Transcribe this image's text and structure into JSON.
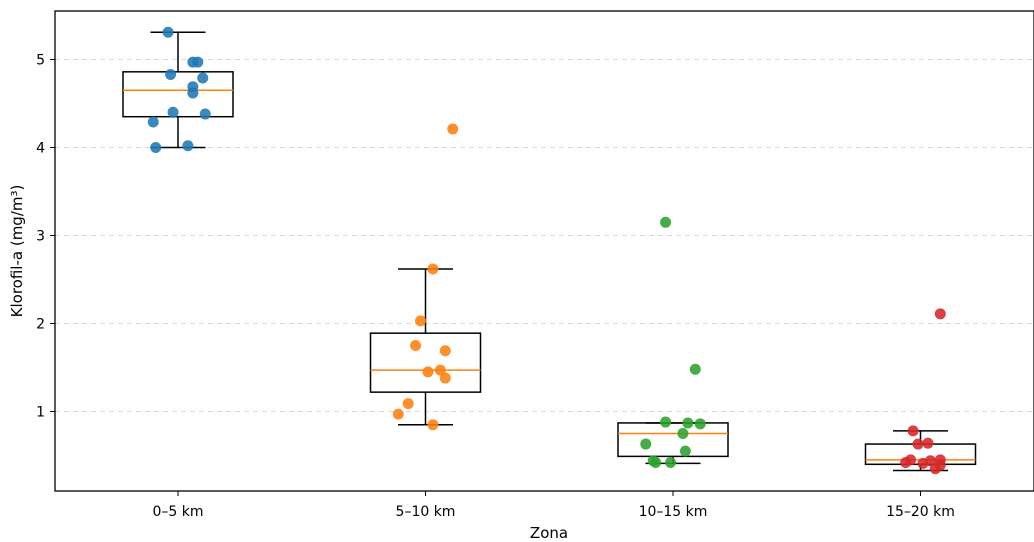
{
  "chart_data": {
    "type": "box",
    "xlabel": "Zona",
    "ylabel": "Klorofil-a (mg/m³)",
    "yticks": [
      1,
      2,
      3,
      4,
      5
    ],
    "ylim": [
      0.12,
      5.55
    ],
    "grid": "horizontal dashed",
    "categories": [
      "0–5 km",
      "5–10 km",
      "10–15 km",
      "15–20 km"
    ],
    "series": [
      {
        "category": "0–5 km",
        "color": "#1f77b4",
        "box": {
          "whisker_low": 4.0,
          "q1": 4.35,
          "median": 4.65,
          "q3": 4.86,
          "whisker_high": 5.31
        },
        "points": [
          [
            0.96,
            5.31
          ],
          [
            0.97,
            4.83
          ],
          [
            1.06,
            4.97
          ],
          [
            1.08,
            4.97
          ],
          [
            1.06,
            4.69
          ],
          [
            1.06,
            4.62
          ],
          [
            1.1,
            4.79
          ],
          [
            1.11,
            4.38
          ],
          [
            0.98,
            4.4
          ],
          [
            0.9,
            4.29
          ],
          [
            0.91,
            4.0
          ],
          [
            1.04,
            4.02
          ]
        ]
      },
      {
        "category": "5–10 km",
        "color": "#ff7f0e",
        "box": {
          "whisker_low": 0.85,
          "q1": 1.22,
          "median": 1.47,
          "q3": 1.89,
          "whisker_high": 2.62
        },
        "points": [
          [
            2.11,
            4.21
          ],
          [
            2.03,
            2.62
          ],
          [
            1.98,
            2.03
          ],
          [
            1.96,
            1.75
          ],
          [
            2.08,
            1.69
          ],
          [
            2.01,
            1.45
          ],
          [
            2.06,
            1.47
          ],
          [
            2.08,
            1.38
          ],
          [
            1.93,
            1.09
          ],
          [
            1.89,
            0.97
          ],
          [
            2.03,
            0.85
          ]
        ]
      },
      {
        "category": "10–15 km",
        "color": "#2ca02c",
        "box": {
          "whisker_low": 0.41,
          "q1": 0.49,
          "median": 0.75,
          "q3": 0.87,
          "whisker_high": 0.87
        },
        "points": [
          [
            2.97,
            3.15
          ],
          [
            3.09,
            1.48
          ],
          [
            2.97,
            0.88
          ],
          [
            3.06,
            0.87
          ],
          [
            3.11,
            0.86
          ],
          [
            3.04,
            0.75
          ],
          [
            2.89,
            0.63
          ],
          [
            3.05,
            0.55
          ],
          [
            2.92,
            0.44
          ],
          [
            2.93,
            0.42
          ],
          [
            2.99,
            0.42
          ]
        ]
      },
      {
        "category": "15–20 km",
        "color": "#d62728",
        "box": {
          "whisker_low": 0.33,
          "q1": 0.4,
          "median": 0.45,
          "q3": 0.63,
          "whisker_high": 0.78
        },
        "points": [
          [
            4.08,
            2.11
          ],
          [
            3.97,
            0.78
          ],
          [
            3.99,
            0.63
          ],
          [
            4.03,
            0.64
          ],
          [
            3.94,
            0.42
          ],
          [
            3.96,
            0.45
          ],
          [
            4.01,
            0.41
          ],
          [
            4.04,
            0.44
          ],
          [
            4.08,
            0.45
          ],
          [
            4.08,
            0.39
          ],
          [
            4.06,
            0.35
          ]
        ]
      }
    ]
  }
}
